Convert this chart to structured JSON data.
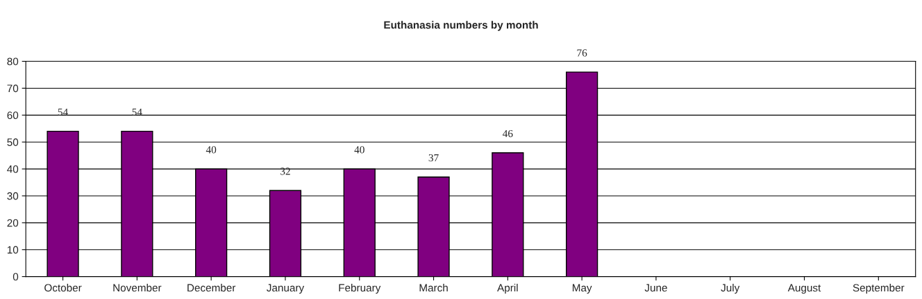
{
  "chart_data": {
    "type": "bar",
    "title": "Euthanasia numbers by month",
    "categories": [
      "October",
      "November",
      "December",
      "January",
      "February",
      "March",
      "April",
      "May",
      "June",
      "July",
      "August",
      "September"
    ],
    "values": [
      54,
      54,
      40,
      32,
      40,
      37,
      46,
      76,
      null,
      null,
      null,
      null
    ],
    "color": "#800080",
    "ylim": [
      0,
      80
    ],
    "yticks": [
      0,
      10,
      20,
      30,
      40,
      50,
      60,
      70,
      80
    ],
    "grid": "y",
    "data_labels": true,
    "legend": false
  }
}
